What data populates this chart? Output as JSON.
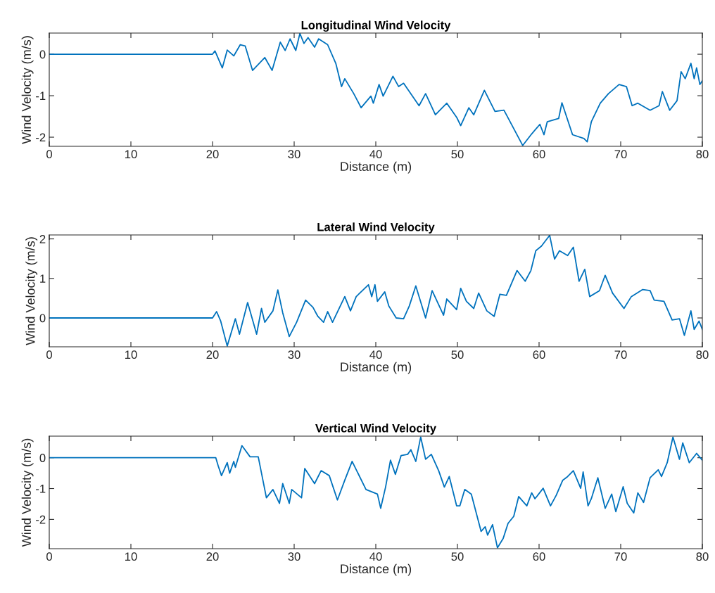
{
  "chart_data": [
    {
      "type": "line",
      "title": "Longitudinal Wind Velocity",
      "xlabel": "Distance (m)",
      "ylabel": "Wind Velocity (m/s)",
      "xlim": [
        0,
        80
      ],
      "ylim": [
        -2.22,
        0.51
      ],
      "xticks": [
        0,
        10,
        20,
        30,
        40,
        50,
        60,
        70,
        80
      ],
      "yticks": [
        -2,
        -1,
        0
      ],
      "series": [
        {
          "color": "#0072bd",
          "x": [
            0,
            20,
            20.3,
            21.2,
            21.8,
            22.6,
            23.4,
            24.0,
            24.9,
            26.4,
            27.3,
            28.3,
            28.9,
            29.5,
            30.2,
            30.7,
            31.2,
            31.7,
            32.5,
            33.0,
            34.1,
            35.1,
            35.8,
            36.2,
            37.3,
            38.2,
            39.4,
            39.7,
            40.4,
            40.9,
            42.1,
            42.8,
            43.4,
            45.3,
            46.1,
            47.3,
            48.7,
            49.9,
            50.4,
            51.4,
            52.0,
            53.3,
            54.6,
            55.7,
            58.0,
            59.1,
            60.1,
            60.6,
            61.0,
            62.4,
            62.8,
            64.1,
            65.5,
            65.9,
            66.4,
            67.5,
            68.5,
            69.8,
            70.7,
            71.4,
            72.1,
            73.6,
            74.7,
            75.1,
            76.0,
            76.9,
            77.4,
            77.9,
            78.6,
            79.0,
            79.3,
            79.7,
            80.0
          ],
          "values": [
            0,
            0,
            0.08,
            -0.33,
            0.1,
            -0.04,
            0.23,
            0.2,
            -0.39,
            -0.08,
            -0.39,
            0.29,
            0.09,
            0.37,
            0.09,
            0.5,
            0.26,
            0.4,
            0.17,
            0.37,
            0.23,
            -0.22,
            -0.78,
            -0.59,
            -0.95,
            -1.29,
            -1.01,
            -1.18,
            -0.73,
            -1.01,
            -0.53,
            -0.78,
            -0.7,
            -1.24,
            -0.95,
            -1.46,
            -1.18,
            -1.52,
            -1.72,
            -1.29,
            -1.46,
            -0.87,
            -1.38,
            -1.35,
            -2.2,
            -1.92,
            -1.69,
            -1.94,
            -1.63,
            -1.55,
            -1.17,
            -1.94,
            -2.03,
            -2.11,
            -1.63,
            -1.18,
            -0.95,
            -0.73,
            -0.78,
            -1.24,
            -1.18,
            -1.35,
            -1.24,
            -0.9,
            -1.35,
            -1.12,
            -0.42,
            -0.59,
            -0.22,
            -0.59,
            -0.33,
            -0.73,
            -0.64
          ]
        }
      ]
    },
    {
      "type": "line",
      "title": "Lateral Wind Velocity",
      "xlabel": "Distance (m)",
      "ylabel": "Wind Velocity (m/s)",
      "xlim": [
        0,
        80
      ],
      "ylim": [
        -0.73,
        2.1
      ],
      "xticks": [
        0,
        10,
        20,
        30,
        40,
        50,
        60,
        70,
        80
      ],
      "yticks": [
        0,
        1,
        2
      ],
      "series": [
        {
          "color": "#0072bd",
          "x": [
            0,
            20,
            20.5,
            21.0,
            21.8,
            22.8,
            23.3,
            24.3,
            25.4,
            26.0,
            26.4,
            27.4,
            28.0,
            28.6,
            29.4,
            30.3,
            31.4,
            32.3,
            32.9,
            33.6,
            34.1,
            34.7,
            36.2,
            36.9,
            37.6,
            39.1,
            39.5,
            39.9,
            40.2,
            41.1,
            41.6,
            42.5,
            43.4,
            44.1,
            44.9,
            46.1,
            46.9,
            48.3,
            48.7,
            49.9,
            50.4,
            51.1,
            52.0,
            52.6,
            53.6,
            54.5,
            55.2,
            56.0,
            57.3,
            58.3,
            59.0,
            59.6,
            60.3,
            61.3,
            61.9,
            62.5,
            63.5,
            64.2,
            64.9,
            65.6,
            66.2,
            67.4,
            68.1,
            69.0,
            70.4,
            71.3,
            72.7,
            73.6,
            74.1,
            75.3,
            76.3,
            77.2,
            77.8,
            78.6,
            79.0,
            79.6,
            80.0
          ],
          "values": [
            0,
            0,
            0.16,
            -0.08,
            -0.71,
            -0.02,
            -0.41,
            0.39,
            -0.41,
            0.24,
            -0.11,
            0.18,
            0.71,
            0.13,
            -0.47,
            -0.11,
            0.45,
            0.27,
            0.04,
            -0.11,
            0.16,
            -0.11,
            0.54,
            0.18,
            0.54,
            0.84,
            0.54,
            0.84,
            0.42,
            0.66,
            0.3,
            0.0,
            -0.02,
            0.3,
            0.81,
            0.0,
            0.69,
            0.07,
            0.48,
            0.21,
            0.75,
            0.42,
            0.24,
            0.63,
            0.18,
            0.04,
            0.6,
            0.57,
            1.2,
            0.93,
            1.2,
            1.7,
            1.82,
            2.09,
            1.49,
            1.7,
            1.58,
            1.79,
            0.93,
            1.23,
            0.54,
            0.69,
            1.08,
            0.63,
            0.24,
            0.54,
            0.72,
            0.69,
            0.45,
            0.42,
            -0.05,
            -0.02,
            -0.44,
            0.18,
            -0.29,
            -0.08,
            -0.29
          ]
        }
      ]
    },
    {
      "type": "line",
      "title": "Vertical Wind Velocity",
      "xlabel": "Distance (m)",
      "ylabel": "Wind Velocity (m/s)",
      "xlim": [
        0,
        80
      ],
      "ylim": [
        -2.95,
        0.7
      ],
      "xticks": [
        0,
        10,
        20,
        30,
        40,
        50,
        60,
        70,
        80
      ],
      "yticks": [
        -2,
        -1,
        0
      ],
      "series": [
        {
          "color": "#0072bd",
          "x": [
            0,
            20,
            20.4,
            20.7,
            21.1,
            21.8,
            22.1,
            22.6,
            22.8,
            23.6,
            24.6,
            25.6,
            26.6,
            27.4,
            28.2,
            28.6,
            29.4,
            29.7,
            30.9,
            31.3,
            32.5,
            33.3,
            34.3,
            35.3,
            36.2,
            37.1,
            38.8,
            40.2,
            40.6,
            41.2,
            41.8,
            42.4,
            43.1,
            43.9,
            44.3,
            44.9,
            45.5,
            46.1,
            46.8,
            47.7,
            48.4,
            49.0,
            49.9,
            50.3,
            50.9,
            51.7,
            52.9,
            53.4,
            53.7,
            54.3,
            54.9,
            55.6,
            56.2,
            56.9,
            57.5,
            58.5,
            59.1,
            59.5,
            60.5,
            61.4,
            62.1,
            62.9,
            63.5,
            64.2,
            65.1,
            65.4,
            66.0,
            66.4,
            67.2,
            68.1,
            68.9,
            69.4,
            70.3,
            70.8,
            71.6,
            72.1,
            72.8,
            73.6,
            74.6,
            75.0,
            75.7,
            76.4,
            77.2,
            77.6,
            78.4,
            79.3,
            80.0
          ],
          "values": [
            0,
            0,
            0,
            -0.27,
            -0.58,
            -0.16,
            -0.5,
            -0.12,
            -0.31,
            0.39,
            0.03,
            0.03,
            -1.3,
            -1.03,
            -1.48,
            -0.84,
            -1.48,
            -1.03,
            -1.3,
            -0.35,
            -0.84,
            -0.42,
            -0.58,
            -1.37,
            -0.73,
            -0.12,
            -1.03,
            -1.18,
            -1.64,
            -0.95,
            -0.08,
            -0.54,
            0.07,
            0.11,
            0.26,
            -0.12,
            0.67,
            -0.05,
            0.11,
            -0.42,
            -0.95,
            -0.61,
            -1.56,
            -1.56,
            -1.03,
            -1.18,
            -2.39,
            -2.24,
            -2.51,
            -2.17,
            -2.92,
            -2.62,
            -2.13,
            -1.9,
            -1.26,
            -1.56,
            -1.14,
            -1.33,
            -0.99,
            -1.56,
            -1.22,
            -0.73,
            -0.61,
            -0.42,
            -0.99,
            -0.46,
            -1.56,
            -1.33,
            -0.65,
            -1.64,
            -1.18,
            -1.75,
            -0.94,
            -1.48,
            -1.79,
            -1.14,
            -1.45,
            -0.65,
            -0.39,
            -0.61,
            -0.16,
            0.67,
            -0.05,
            0.48,
            -0.16,
            0.14,
            -0.08
          ]
        }
      ]
    }
  ]
}
